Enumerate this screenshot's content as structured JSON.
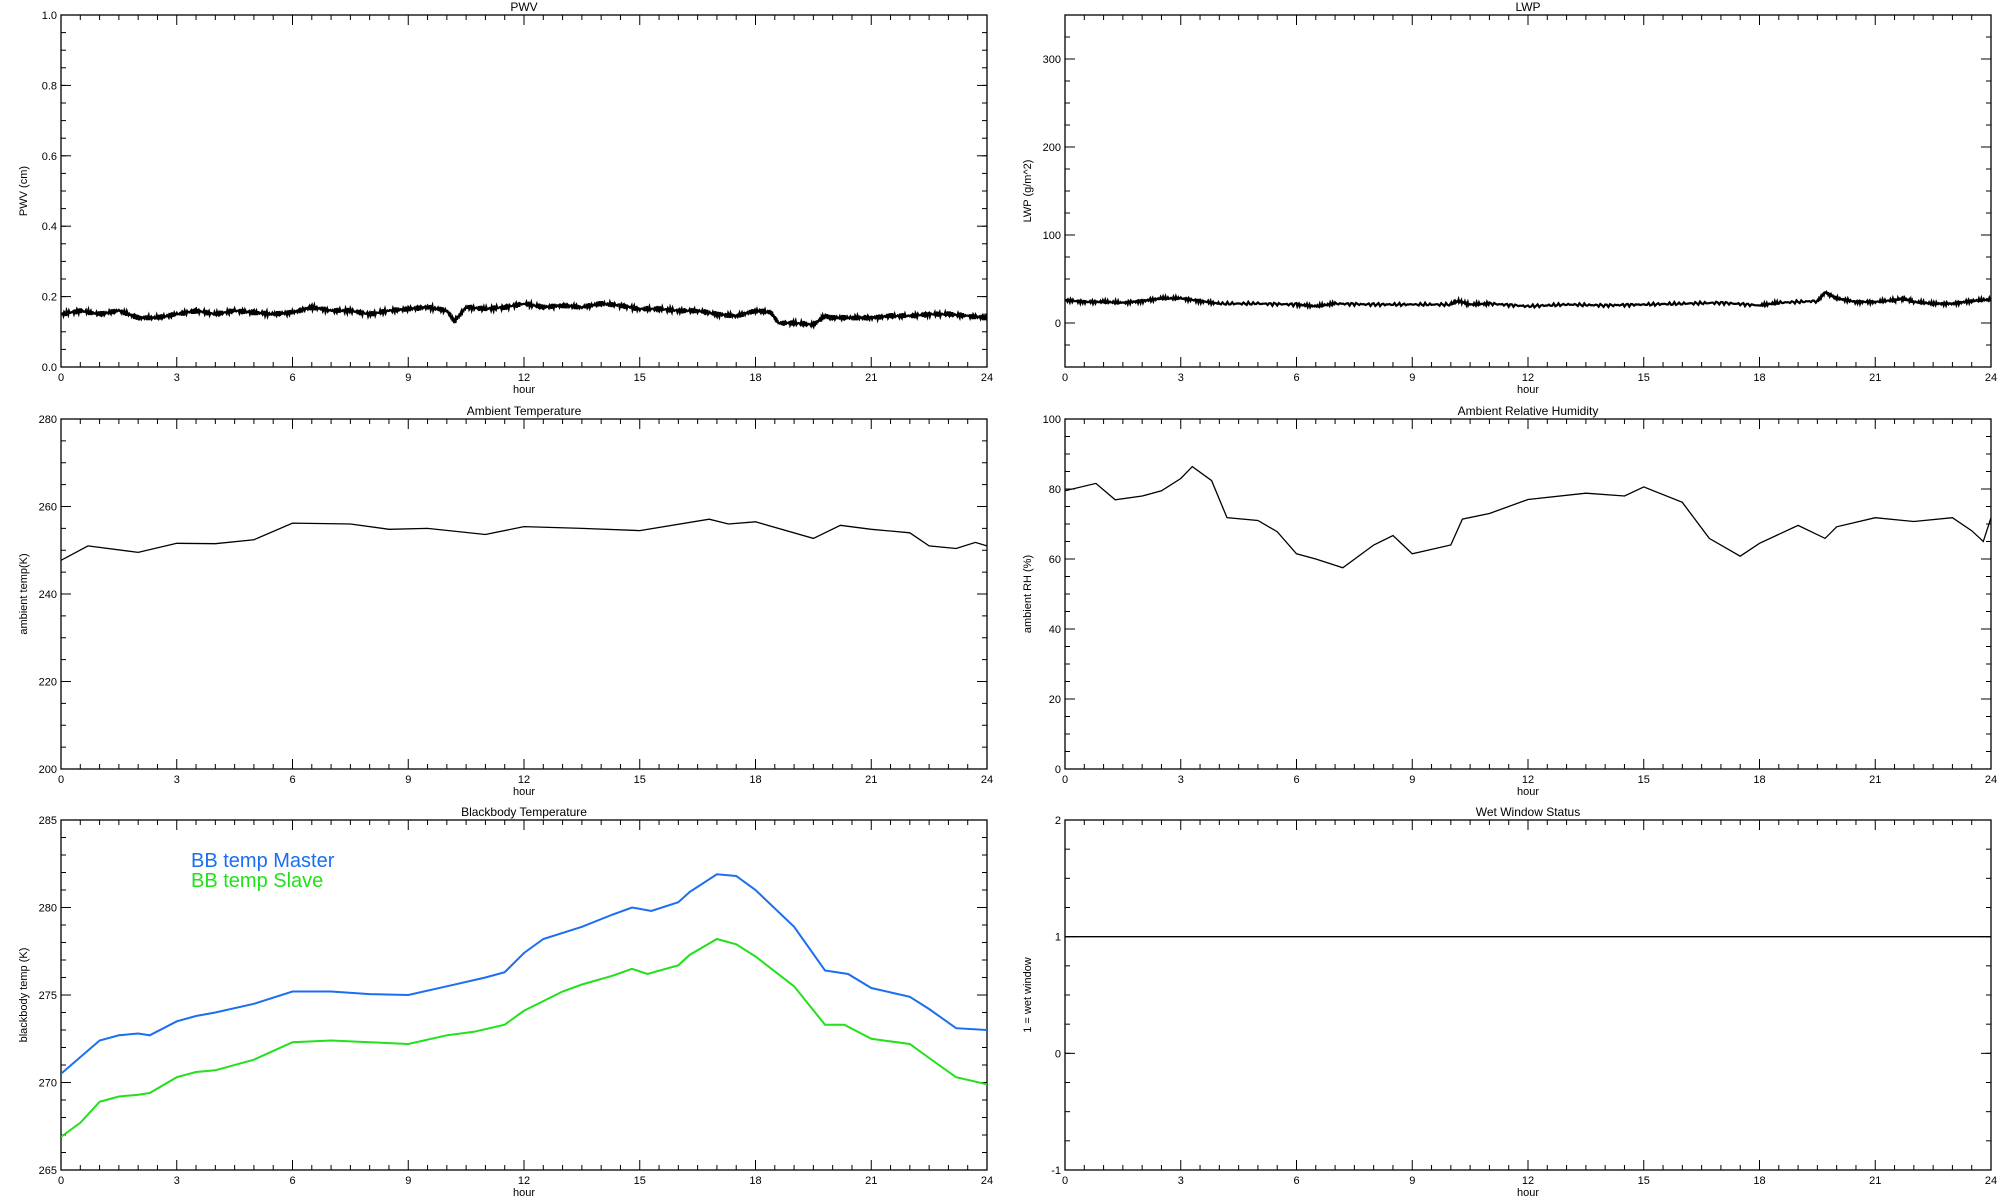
{
  "chart_data": [
    {
      "type": "line",
      "title": "PWV",
      "xlabel": "hour",
      "ylabel": "PWV (cm)",
      "xlim": [
        0,
        24
      ],
      "ylim": [
        0.0,
        1.0
      ],
      "xticks": [
        "0",
        "3",
        "6",
        "9",
        "12",
        "15",
        "18",
        "21",
        "24"
      ],
      "yticks": [
        "0.0",
        "0.2",
        "0.4",
        "0.6",
        "0.8",
        "1.0"
      ],
      "series": [
        {
          "name": "PWV",
          "color": "#000000",
          "x": [
            0,
            0.5,
            1,
            1.5,
            2,
            2.5,
            3,
            3.5,
            4,
            4.5,
            5,
            5.5,
            6,
            6.5,
            7,
            7.5,
            8,
            8.5,
            9,
            9.5,
            10,
            10.2,
            10.5,
            11,
            11.5,
            12,
            12.5,
            13,
            13.5,
            14,
            14.5,
            15,
            15.5,
            16,
            16.5,
            17,
            17.5,
            18,
            18.4,
            18.6,
            19,
            19.5,
            19.8,
            20,
            20.5,
            21,
            21.5,
            22,
            22.5,
            23,
            23.5,
            24
          ],
          "y": [
            0.15,
            0.16,
            0.15,
            0.16,
            0.14,
            0.14,
            0.15,
            0.16,
            0.15,
            0.16,
            0.155,
            0.15,
            0.155,
            0.17,
            0.16,
            0.16,
            0.15,
            0.16,
            0.165,
            0.17,
            0.16,
            0.13,
            0.17,
            0.165,
            0.17,
            0.18,
            0.17,
            0.175,
            0.17,
            0.18,
            0.175,
            0.165,
            0.165,
            0.16,
            0.16,
            0.15,
            0.145,
            0.16,
            0.155,
            0.125,
            0.125,
            0.12,
            0.145,
            0.14,
            0.14,
            0.14,
            0.145,
            0.145,
            0.15,
            0.15,
            0.145,
            0.14
          ]
        }
      ]
    },
    {
      "type": "line",
      "title": "LWP",
      "xlabel": "hour",
      "ylabel": "LWP (g/m^2)",
      "xlim": [
        0,
        24
      ],
      "ylim": [
        -50,
        350
      ],
      "xticks": [
        "0",
        "3",
        "6",
        "9",
        "12",
        "15",
        "18",
        "21",
        "24"
      ],
      "yticks": [
        "0",
        "100",
        "200",
        "300"
      ],
      "ytick_values": [
        0,
        100,
        200,
        300
      ],
      "series": [
        {
          "name": "LWP",
          "color": "#000000",
          "x": [
            0,
            0.5,
            1,
            1.5,
            2,
            2.5,
            3,
            3.5,
            4,
            5,
            6,
            6.5,
            7,
            8,
            9,
            10,
            10.2,
            10.5,
            11,
            12,
            13,
            14,
            15,
            16,
            17,
            18,
            18.5,
            19.5,
            19.7,
            20,
            20.5,
            21,
            21.5,
            21.7,
            22,
            22.5,
            23,
            23.5,
            24
          ],
          "y": [
            26,
            24,
            24,
            23,
            25,
            28,
            28,
            25,
            22,
            22,
            21,
            19,
            22,
            21,
            21,
            21,
            25,
            21,
            22,
            19,
            21,
            20,
            21,
            22,
            23,
            20,
            23,
            25,
            35,
            28,
            24,
            24,
            26,
            28,
            24,
            22,
            22,
            25,
            27
          ]
        }
      ]
    },
    {
      "type": "line",
      "title": "Ambient Temperature",
      "xlabel": "hour",
      "ylabel": "ambient temp(K)",
      "xlim": [
        0,
        24
      ],
      "ylim": [
        200,
        280
      ],
      "xticks": [
        "0",
        "3",
        "6",
        "9",
        "12",
        "15",
        "18",
        "21",
        "24"
      ],
      "yticks": [
        "200",
        "220",
        "240",
        "260",
        "280"
      ],
      "series": [
        {
          "name": "ambient temp",
          "color": "#000000",
          "x": [
            0,
            0.7,
            2,
            3,
            4,
            5,
            6,
            7.5,
            8.5,
            9.5,
            11,
            12,
            13.5,
            15,
            16.8,
            17.3,
            18,
            19.5,
            20.2,
            21,
            22,
            22.5,
            23.2,
            23.7,
            24
          ],
          "y": [
            247.7,
            251,
            249.5,
            251.6,
            251.5,
            252.4,
            256.2,
            256,
            254.8,
            255,
            253.6,
            255.4,
            255,
            254.5,
            257.1,
            256,
            256.5,
            252.7,
            255.7,
            254.8,
            254,
            251,
            250.4,
            251.8,
            251
          ]
        }
      ]
    },
    {
      "type": "line",
      "title": "Ambient Relative Humidity",
      "xlabel": "hour",
      "ylabel": "ambient RH (%)",
      "xlim": [
        0,
        24
      ],
      "ylim": [
        0,
        100
      ],
      "xticks": [
        "0",
        "3",
        "6",
        "9",
        "12",
        "15",
        "18",
        "21",
        "24"
      ],
      "yticks": [
        "0",
        "20",
        "40",
        "60",
        "80",
        "100"
      ],
      "series": [
        {
          "name": "ambient RH",
          "color": "#000000",
          "x": [
            0,
            0.8,
            1.3,
            2,
            2.5,
            3,
            3.3,
            3.8,
            4.2,
            5,
            5.5,
            6,
            6.5,
            7.2,
            8,
            8.5,
            9,
            10,
            10.3,
            11,
            12,
            13.5,
            14.5,
            15,
            16,
            16.7,
            17.5,
            18,
            19,
            19.7,
            20,
            21,
            22,
            23,
            23.5,
            23.8,
            24
          ],
          "y": [
            79.5,
            81.6,
            76.9,
            78,
            79.5,
            83,
            86.4,
            82.4,
            71.8,
            71,
            67.8,
            61.5,
            60,
            57.5,
            64,
            66.7,
            61.5,
            64,
            71.4,
            73,
            77,
            78.8,
            78,
            80.6,
            76.2,
            65.9,
            60.8,
            64.5,
            69.6,
            65.9,
            69.2,
            71.8,
            70.7,
            71.8,
            68.1,
            65,
            71.8
          ]
        }
      ]
    },
    {
      "type": "line",
      "title": "Blackbody Temperature",
      "xlabel": "hour",
      "ylabel": "blackbody temp (K)",
      "xlim": [
        0,
        24
      ],
      "ylim": [
        265,
        285
      ],
      "xticks": [
        "0",
        "3",
        "6",
        "9",
        "12",
        "15",
        "18",
        "21",
        "24"
      ],
      "yticks": [
        "265",
        "270",
        "275",
        "280",
        "285"
      ],
      "legend": "top-left",
      "series": [
        {
          "name": "BB temp Master",
          "color": "#1a6ef0",
          "x": [
            0,
            1,
            1.5,
            2,
            2.3,
            3,
            3.5,
            4,
            5,
            6,
            7,
            8,
            9,
            10,
            11,
            11.5,
            12,
            12.5,
            13.5,
            14.3,
            14.8,
            15.3,
            16,
            16.3,
            17,
            17.5,
            18,
            19,
            19.8,
            20.4,
            21,
            22,
            22.5,
            23.2,
            24
          ],
          "y": [
            270.5,
            272.4,
            272.7,
            272.8,
            272.7,
            273.5,
            273.8,
            274.0,
            274.5,
            275.2,
            275.2,
            275.05,
            275.0,
            275.5,
            276.0,
            276.3,
            277.4,
            278.2,
            278.9,
            279.6,
            280.0,
            279.8,
            280.3,
            280.9,
            281.9,
            281.8,
            281.0,
            278.9,
            276.4,
            276.2,
            275.4,
            274.9,
            274.2,
            273.1,
            273.0
          ]
        },
        {
          "name": "BB temp Slave",
          "color": "#22e01a",
          "x": [
            0,
            0.5,
            1,
            1.5,
            2,
            2.3,
            3,
            3.5,
            4,
            5,
            6,
            7,
            8,
            9,
            10,
            10.7,
            11.5,
            12,
            13,
            13.5,
            14.3,
            14.8,
            15.2,
            16,
            16.3,
            17,
            17.5,
            18,
            19,
            19.8,
            20.3,
            21,
            22,
            22.5,
            23.2,
            24
          ],
          "y": [
            266.9,
            267.7,
            268.9,
            269.2,
            269.3,
            269.4,
            270.3,
            270.6,
            270.7,
            271.3,
            272.3,
            272.4,
            272.3,
            272.2,
            272.7,
            272.9,
            273.3,
            274.1,
            275.2,
            275.6,
            276.1,
            276.5,
            276.2,
            276.7,
            277.3,
            278.2,
            277.9,
            277.2,
            275.5,
            273.3,
            273.3,
            272.5,
            272.2,
            271.4,
            270.3,
            269.9
          ]
        }
      ]
    },
    {
      "type": "line",
      "title": "Wet Window Status",
      "xlabel": "hour",
      "ylabel": "1 = wet window",
      "xlim": [
        0,
        24
      ],
      "ylim": [
        -1,
        2
      ],
      "xticks": [
        "0",
        "3",
        "6",
        "9",
        "12",
        "15",
        "18",
        "21",
        "24"
      ],
      "yticks": [
        "-1",
        "0",
        "1",
        "2"
      ],
      "series": [
        {
          "name": "wet window",
          "color": "#000000",
          "x": [
            0,
            24
          ],
          "y": [
            1,
            1
          ]
        }
      ]
    }
  ]
}
